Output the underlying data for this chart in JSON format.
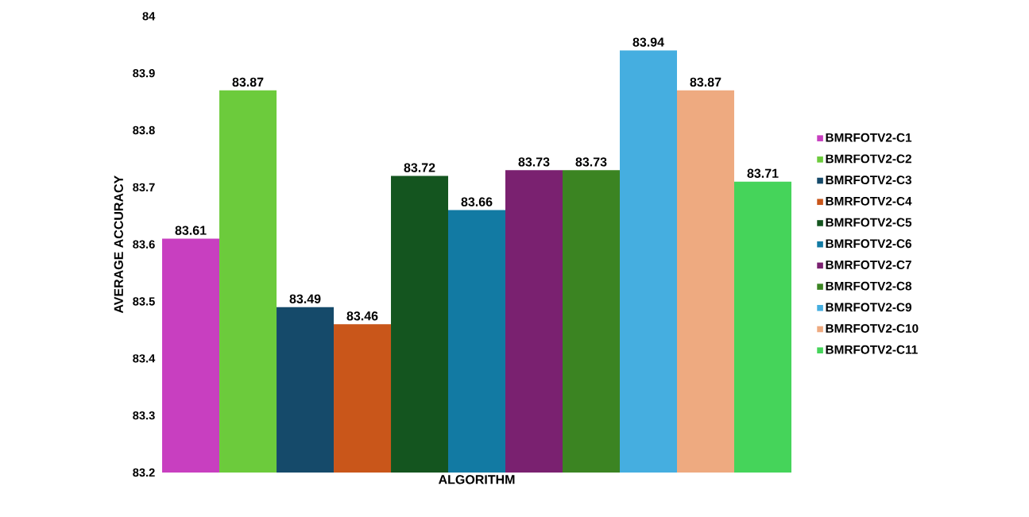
{
  "chart_data": {
    "type": "bar",
    "xlabel": "ALGORITHM",
    "ylabel": "AVERAGE ACCURACY",
    "categories": [
      null
    ],
    "series": [
      {
        "name": "BMRFOTV2-C1",
        "color": "#c83fc0",
        "values": [
          83.61
        ]
      },
      {
        "name": "BMRFOTV2-C2",
        "color": "#6ccb3c",
        "values": [
          83.87
        ]
      },
      {
        "name": "BMRFOTV2-C3",
        "color": "#154a6a",
        "values": [
          83.49
        ]
      },
      {
        "name": "BMRFOTV2-C4",
        "color": "#c9561a",
        "values": [
          83.46
        ]
      },
      {
        "name": "BMRFOTV2-C5",
        "color": "#14551f",
        "values": [
          83.72
        ]
      },
      {
        "name": "BMRFOTV2-C6",
        "color": "#127aa3",
        "values": [
          83.66
        ]
      },
      {
        "name": "BMRFOTV2-C7",
        "color": "#7a2170",
        "values": [
          83.73
        ]
      },
      {
        "name": "BMRFOTV2-C8",
        "color": "#3b8422",
        "values": [
          83.73
        ]
      },
      {
        "name": "BMRFOTV2-C9",
        "color": "#45aee0",
        "values": [
          83.94
        ]
      },
      {
        "name": "BMRFOTV2-C10",
        "color": "#eeaa80",
        "values": [
          83.87
        ]
      },
      {
        "name": "BMRFOTV2-C11",
        "color": "#45d45a",
        "values": [
          83.71
        ]
      }
    ],
    "ylim": [
      83.2,
      84
    ],
    "yticks": [
      83.2,
      83.3,
      83.4,
      83.5,
      83.6,
      83.7,
      83.8,
      83.9,
      84
    ],
    "data_labels": true,
    "legend": "right",
    "grid": false
  }
}
